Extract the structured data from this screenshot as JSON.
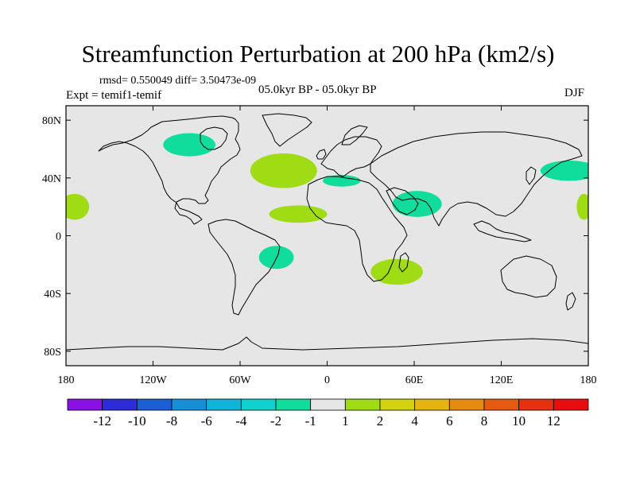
{
  "chart_data": {
    "type": "heatmap",
    "title": "Streamfunction Perturbation at 200 hPa (km2/s)",
    "subtitle": "rmsd= 0.550049 diff= 3.50473e-09",
    "left_label": "Expt = temif1-temif",
    "center_label": "05.0kyr BP - 05.0kyr BP",
    "right_label": "DJF",
    "xlim": [
      -180,
      180
    ],
    "ylim": [
      -90,
      90
    ],
    "x_ticks": [
      {
        "value": -180,
        "label": "180"
      },
      {
        "value": -120,
        "label": "120W"
      },
      {
        "value": -60,
        "label": "60W"
      },
      {
        "value": 0,
        "label": "0"
      },
      {
        "value": 60,
        "label": "60E"
      },
      {
        "value": 120,
        "label": "120E"
      },
      {
        "value": 180,
        "label": "180"
      }
    ],
    "y_ticks": [
      {
        "value": 80,
        "label": "80N"
      },
      {
        "value": 40,
        "label": "40N"
      },
      {
        "value": 0,
        "label": "0"
      },
      {
        "value": -40,
        "label": "40S"
      },
      {
        "value": -80,
        "label": "80S"
      }
    ],
    "colorbar": {
      "levels": [
        "-12",
        "-10",
        "-8",
        "-6",
        "-4",
        "-2",
        "-1",
        "1",
        "2",
        "4",
        "6",
        "8",
        "10",
        "12"
      ],
      "colors": [
        "#8a10e6",
        "#2e2bd8",
        "#1a5fd6",
        "#148fd8",
        "#10b4d8",
        "#10d0d0",
        "#10dc9c",
        "#e6e6e6",
        "#a0dc14",
        "#d2d210",
        "#e6b410",
        "#e68a10",
        "#e65a10",
        "#e63010",
        "#e60e0e"
      ]
    },
    "anomalies": [
      {
        "region": "Hudson Bay",
        "lon": -95,
        "lat": 63,
        "rx": 18,
        "ry": 8,
        "category": "-1 to -2"
      },
      {
        "region": "North Atlantic",
        "lon": -30,
        "lat": 45,
        "rx": 23,
        "ry": 12,
        "category": "1 to 2"
      },
      {
        "region": "Mediterranean",
        "lon": 10,
        "lat": 38,
        "rx": 13,
        "ry": 4,
        "category": "-1 to -2"
      },
      {
        "region": "Tropical Atlantic",
        "lon": -20,
        "lat": 15,
        "rx": 20,
        "ry": 6,
        "category": "1 to 2"
      },
      {
        "region": "Arabia / India",
        "lon": 62,
        "lat": 22,
        "rx": 17,
        "ry": 9,
        "category": "-1 to -2"
      },
      {
        "region": "Northwest Pacific",
        "lon": 167,
        "lat": 45,
        "rx": 20,
        "ry": 7,
        "category": "-1 to -2"
      },
      {
        "region": "Eastern Pacific",
        "lon": -174,
        "lat": 20,
        "rx": 10,
        "ry": 9,
        "category": "1 to 2"
      },
      {
        "region": "Western Pacific edge",
        "lon": 177,
        "lat": 20,
        "rx": 5,
        "ry": 9,
        "category": "1 to 2"
      },
      {
        "region": "South Atlantic",
        "lon": -35,
        "lat": -15,
        "rx": 12,
        "ry": 8,
        "category": "-1 to -2"
      },
      {
        "region": "Southern Africa",
        "lon": 48,
        "lat": -25,
        "rx": 18,
        "ry": 9,
        "category": "1 to 2"
      }
    ]
  }
}
